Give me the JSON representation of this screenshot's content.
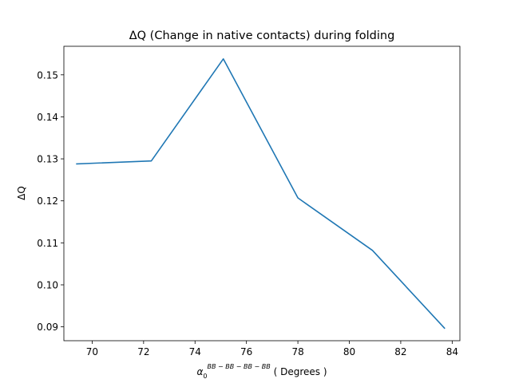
{
  "chart_data": {
    "type": "line",
    "title": "ΔQ (Change in native contacts) during folding",
    "xlabel": {
      "symbol": "α",
      "subscript": "0",
      "superscript": "BB − BB − BB − BB",
      "suffix": " ( Degrees )"
    },
    "ylabel": "ΔQ",
    "xlim": [
      68.9,
      84.3
    ],
    "ylim": [
      0.0867,
      0.1568
    ],
    "xticks": [
      70,
      72,
      74,
      76,
      78,
      80,
      82,
      84
    ],
    "xtick_labels": [
      "70",
      "72",
      "74",
      "76",
      "78",
      "80",
      "82",
      "84"
    ],
    "yticks": [
      0.09,
      0.1,
      0.11,
      0.12,
      0.13,
      0.14,
      0.15
    ],
    "ytick_labels": [
      "0.09",
      "0.10",
      "0.11",
      "0.12",
      "0.13",
      "0.14",
      "0.15"
    ],
    "grid": false,
    "series": [
      {
        "color": "#1f77b4",
        "x": [
          69.4,
          72.3,
          75.1,
          78.0,
          80.9,
          83.7
        ],
        "y": [
          0.1288,
          0.1295,
          0.1538,
          0.1207,
          0.1082,
          0.0897
        ]
      }
    ]
  }
}
